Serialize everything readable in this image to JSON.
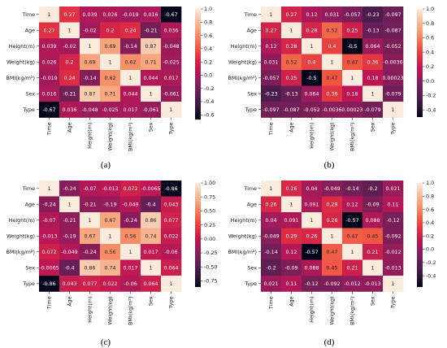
{
  "figure": {
    "variables": [
      "Time",
      "Age",
      "Height(m)",
      "Weight(kg)",
      "BMI(kg/m²)",
      "Sex",
      "Type"
    ]
  },
  "colormap": {
    "name": "rocket",
    "stops": [
      "#03051a",
      "#2a1636",
      "#4c1d4b",
      "#701f57",
      "#961c5b",
      "#bd1655",
      "#dc2b43",
      "#ef5042",
      "#f47f57",
      "#f6a47c",
      "#f6c6a7",
      "#faebdd"
    ]
  },
  "chart_data": [
    {
      "type": "heatmap",
      "label": "(a)",
      "rows": [
        "Time",
        "Age",
        "Height(m)",
        "Weight(kg)",
        "BMI(kg/m²)",
        "Sex",
        "Type"
      ],
      "columns": [
        "Time",
        "Age",
        "Height(m)",
        "Weight(kg)",
        "BMI(kg/m²)",
        "Sex",
        "Type"
      ],
      "values": [
        [
          1,
          0.27,
          0.039,
          0.026,
          -0.019,
          0.016,
          -0.67
        ],
        [
          0.27,
          1,
          -0.02,
          0.2,
          0.24,
          -0.21,
          0.036
        ],
        [
          0.039,
          -0.02,
          1,
          0.69,
          -0.14,
          0.87,
          -0.048
        ],
        [
          0.026,
          0.2,
          0.69,
          1,
          0.62,
          0.71,
          -0.025
        ],
        [
          -0.019,
          0.24,
          -0.14,
          0.62,
          1,
          0.044,
          0.017
        ],
        [
          0.016,
          -0.21,
          0.87,
          0.71,
          0.044,
          1,
          -0.061
        ],
        [
          -0.67,
          0.036,
          -0.048,
          -0.025,
          0.017,
          -0.061,
          1
        ]
      ],
      "labels": [
        [
          "1",
          "0.27",
          "0.039",
          "0.026",
          "-0.019",
          "0.016",
          "-0.67"
        ],
        [
          "0.27",
          "1",
          "-0.02",
          "0.2",
          "0.24",
          "-0.21",
          "0.036"
        ],
        [
          "0.039",
          "-0.02",
          "1",
          "0.69",
          "-0.14",
          "0.87",
          "-0.048"
        ],
        [
          "0.026",
          "0.2",
          "0.69",
          "1",
          "0.62",
          "0.71",
          "-0.025"
        ],
        [
          "-0.019",
          "0.24",
          "-0.14",
          "0.62",
          "1",
          "0.044",
          "0.017"
        ],
        [
          "0.016",
          "-0.21",
          "0.87",
          "0.71",
          "0.044",
          "1",
          "-0.061"
        ],
        [
          "-0.67",
          "0.036",
          "-0.048",
          "-0.025",
          "0.017",
          "-0.061",
          "1"
        ]
      ],
      "colorbar": {
        "min": -0.67,
        "max": 1.0,
        "ticks": [
          "1.0",
          "0.8",
          "0.6",
          "0.4",
          "0.2",
          "0.0",
          "-0.2",
          "-0.4",
          "-0.6"
        ]
      }
    },
    {
      "type": "heatmap",
      "label": "(b)",
      "rows": [
        "Time",
        "Age",
        "Height(m)",
        "Weight(kg)",
        "BMI(kg/m²)",
        "Sex",
        "Type"
      ],
      "columns": [
        "Time",
        "Age",
        "Height(m)",
        "Weight(kg)",
        "BMI(kg/m²)",
        "Sex",
        "Type"
      ],
      "values": [
        [
          1,
          0.27,
          0.12,
          0.031,
          -0.057,
          -0.23,
          -0.097
        ],
        [
          0.27,
          1,
          0.28,
          0.52,
          0.25,
          -0.13,
          -0.087
        ],
        [
          0.12,
          0.28,
          1,
          0.4,
          -0.5,
          0.064,
          -0.052
        ],
        [
          0.031,
          0.52,
          0.4,
          1,
          0.47,
          0.36,
          -0.0036
        ],
        [
          -0.057,
          0.25,
          -0.5,
          0.47,
          1,
          0.18,
          0.00023
        ],
        [
          -0.23,
          -0.13,
          0.064,
          0.36,
          0.18,
          1,
          -0.079
        ],
        [
          -0.097,
          -0.087,
          -0.052,
          -0.0036,
          0.00023,
          -0.079,
          1
        ]
      ],
      "labels": [
        [
          "1",
          "0.27",
          "0.12",
          "0.031",
          "-0.057",
          "-0.23",
          "-0.097"
        ],
        [
          "0.27",
          "1",
          "0.28",
          "0.52",
          "0.25",
          "-0.13",
          "-0.087"
        ],
        [
          "0.12",
          "0.28",
          "1",
          "0.4",
          "-0.5",
          "0.064",
          "-0.052"
        ],
        [
          "0.031",
          "0.52",
          "0.4",
          "1",
          "0.47",
          "0.36",
          "-0.0036"
        ],
        [
          "-0.057",
          "0.25",
          "-0.5",
          "0.47",
          "1",
          "0.18",
          "0.00023"
        ],
        [
          "-0.23",
          "-0.13",
          "0.064",
          "0.36",
          "0.18",
          "1",
          "-0.079"
        ],
        [
          "-0.097",
          "-0.087",
          "-0.052",
          "-0.0036",
          "0.00023",
          "-0.079",
          "1"
        ]
      ],
      "colorbar": {
        "min": -0.5,
        "max": 1.0,
        "ticks": [
          "1.0",
          "0.8",
          "0.6",
          "0.4",
          "0.2",
          "0.0",
          "-0.2",
          "-0.4"
        ]
      }
    },
    {
      "type": "heatmap",
      "label": "(c)",
      "rows": [
        "Time",
        "Age",
        "Height(m)",
        "Weight(kg)",
        "BMI(kg/m²)",
        "Sex",
        "Type"
      ],
      "columns": [
        "Time",
        "Age",
        "Height(m)",
        "Weight(kg)",
        "BMI(kg/m²)",
        "Sex",
        "Type"
      ],
      "values": [
        [
          1,
          -0.24,
          -0.07,
          -0.013,
          0.072,
          -0.0065,
          -0.86
        ],
        [
          -0.24,
          1,
          -0.21,
          -0.19,
          -0.049,
          -0.4,
          0.043
        ],
        [
          -0.07,
          -0.21,
          1,
          0.67,
          -0.24,
          0.86,
          0.077
        ],
        [
          -0.013,
          -0.19,
          0.67,
          1,
          0.56,
          0.74,
          0.022
        ],
        [
          0.072,
          -0.049,
          -0.24,
          0.56,
          1,
          0.017,
          -0.06
        ],
        [
          -0.0065,
          -0.4,
          0.86,
          0.74,
          0.017,
          1,
          0.064
        ],
        [
          -0.86,
          0.043,
          0.077,
          0.022,
          -0.06,
          0.064,
          1
        ]
      ],
      "labels": [
        [
          "1",
          "-0.24",
          "-0.07",
          "-0.013",
          "0.072",
          "-0.0065",
          "-0.86"
        ],
        [
          "-0.24",
          "1",
          "-0.21",
          "-0.19",
          "-0.049",
          "-0.4",
          "0.043"
        ],
        [
          "-0.07",
          "-0.21",
          "1",
          "0.67",
          "-0.24",
          "0.86",
          "0.077"
        ],
        [
          "-0.013",
          "-0.19",
          "0.67",
          "1",
          "0.56",
          "0.74",
          "0.022"
        ],
        [
          "0.072",
          "-0.049",
          "-0.24",
          "0.56",
          "1",
          "0.017",
          "-0.06"
        ],
        [
          "-0.0065",
          "-0.4",
          "0.86",
          "0.74",
          "0.017",
          "1",
          "0.064"
        ],
        [
          "-0.86",
          "0.043",
          "0.077",
          "0.022",
          "-0.06",
          "0.064",
          "1"
        ]
      ],
      "colorbar": {
        "min": -0.86,
        "max": 1.0,
        "ticks": [
          "1.00",
          "0.75",
          "0.50",
          "0.25",
          "0.00",
          "-0.25",
          "-0.50",
          "-0.75"
        ]
      }
    },
    {
      "type": "heatmap",
      "label": "(d)",
      "rows": [
        "Time",
        "Age",
        "Height(m)",
        "Weight(kg)",
        "BMI(kg/m²)",
        "Sex",
        "Type"
      ],
      "columns": [
        "Time",
        "Age",
        "Height(m)",
        "Weight(kg)",
        "BMI(kg/m²)",
        "Sex",
        "Type"
      ],
      "values": [
        [
          1,
          0.26,
          0.04,
          -0.049,
          -0.14,
          -0.2,
          0.021
        ],
        [
          0.26,
          1,
          0.091,
          0.29,
          0.12,
          -0.09,
          0.11
        ],
        [
          0.04,
          0.091,
          1,
          0.26,
          -0.57,
          0.088,
          -0.12
        ],
        [
          -0.049,
          0.29,
          0.26,
          1,
          0.47,
          0.45,
          -0.092
        ],
        [
          -0.14,
          0.12,
          -0.57,
          0.47,
          1,
          0.21,
          -0.012
        ],
        [
          -0.2,
          -0.09,
          0.088,
          0.45,
          0.21,
          1,
          -0.013
        ],
        [
          0.021,
          0.11,
          -0.12,
          -0.092,
          -0.012,
          -0.013,
          1
        ]
      ],
      "labels": [
        [
          "1",
          "0.26",
          "0.04",
          "-0.049",
          "-0.14",
          "-0.2",
          "0.021"
        ],
        [
          "0.26",
          "1",
          "0.091",
          "0.29",
          "0.12",
          "-0.09",
          "0.11"
        ],
        [
          "0.04",
          "0.091",
          "1",
          "0.26",
          "-0.57",
          "0.088",
          "-0.12"
        ],
        [
          "-0.049",
          "0.29",
          "0.26",
          "1",
          "0.47",
          "0.45",
          "-0.092"
        ],
        [
          "-0.14",
          "0.12",
          "-0.57",
          "0.47",
          "1",
          "0.21",
          "-0.012"
        ],
        [
          "-0.2",
          "-0.09",
          "0.088",
          "0.45",
          "0.21",
          "1",
          "-0.013"
        ],
        [
          "0.021",
          "0.11",
          "-0.12",
          "-0.092",
          "-0.012",
          "-0.013",
          "1"
        ]
      ],
      "colorbar": {
        "min": -0.57,
        "max": 1.0,
        "ticks": [
          "1.0",
          "0.8",
          "0.6",
          "0.4",
          "0.2",
          "0.0",
          "-0.2",
          "-0.4"
        ]
      }
    }
  ]
}
